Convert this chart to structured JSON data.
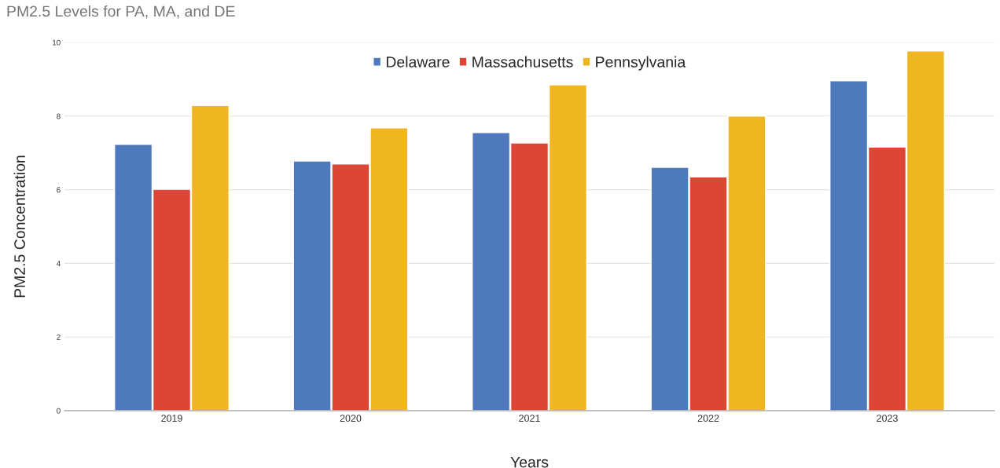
{
  "chart_data": {
    "type": "bar",
    "title": "PM2.5 Levels for PA, MA, and DE",
    "xlabel": "Years",
    "ylabel": "PM2.5 Concentration",
    "categories": [
      "2019",
      "2020",
      "2021",
      "2022",
      "2023"
    ],
    "series": [
      {
        "name": "Delaware",
        "color": "#4e79bd",
        "values": [
          7.23,
          6.78,
          7.55,
          6.61,
          8.96
        ]
      },
      {
        "name": "Massachusetts",
        "color": "#dd4535",
        "values": [
          6.01,
          6.7,
          7.27,
          6.35,
          7.16
        ]
      },
      {
        "name": "Pennsylvania",
        "color": "#f0b621",
        "values": [
          8.29,
          7.68,
          8.85,
          8.0,
          9.77
        ]
      }
    ],
    "ylim": [
      0,
      10
    ],
    "yticks": [
      0,
      2,
      4,
      6,
      8,
      10
    ],
    "grid": "y",
    "legend": "top"
  }
}
